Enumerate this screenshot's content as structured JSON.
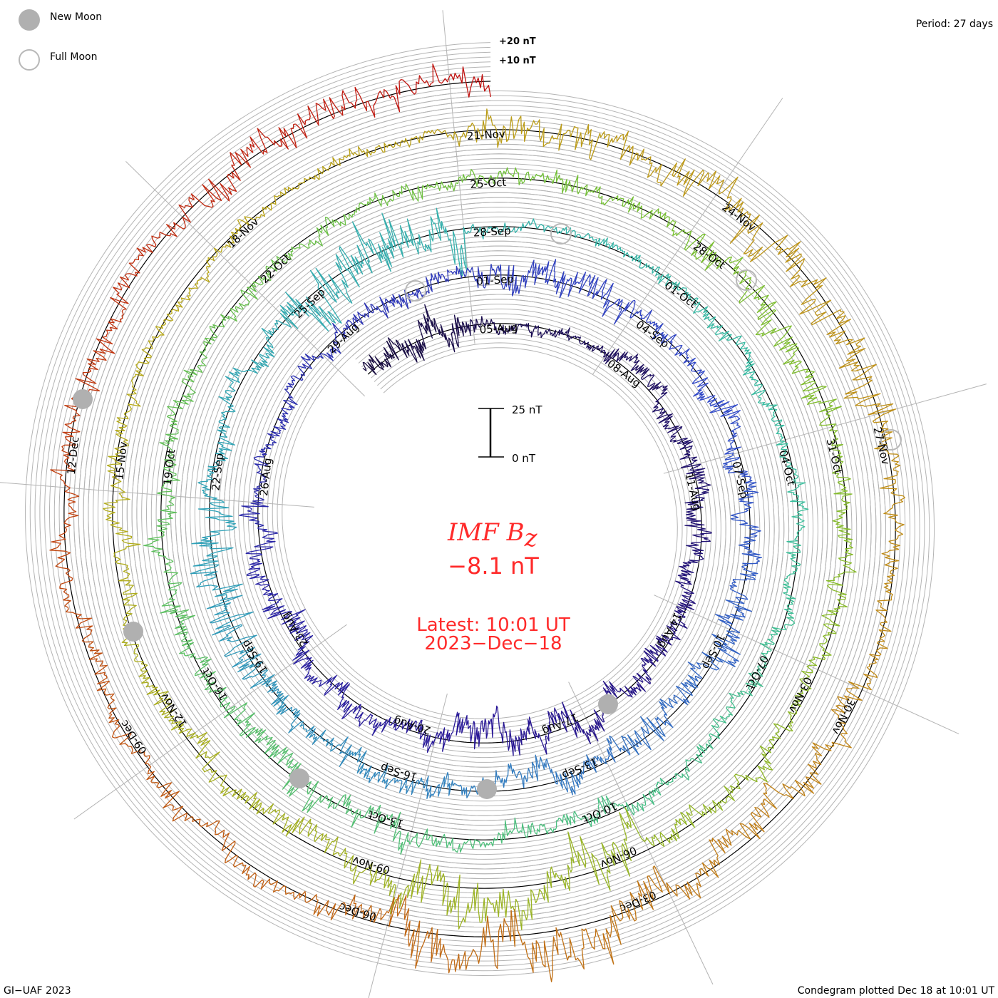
{
  "legend": {
    "new_moon": "New Moon",
    "full_moon": "Full Moon"
  },
  "period_label": "Period: 27 days",
  "scale_labels": {
    "plus20": "+20 nT",
    "plus10": "+10 nT"
  },
  "scale_bar": {
    "top": "25 nT",
    "bottom": "0 nT"
  },
  "center": {
    "title_main": "IMF B",
    "title_sub": "z",
    "value": "−8.1 nT",
    "latest": "Latest: 10:01 UT",
    "date": "2023−Dec−18"
  },
  "footer": {
    "left": "GI−UAF 2023",
    "right": "Condegram plotted Dec 18 at 10:01 UT"
  },
  "colors": {
    "text_red": "#ff2a2a",
    "grid": "#b4b4b4",
    "zero_line": "#000000",
    "moon": "#b0b0b0"
  },
  "chart_data": {
    "type": "line",
    "layout": "spiral condegram (clockwise)",
    "title": "IMF Bz",
    "units": "nT",
    "period_days": 27,
    "start_day": -2.6,
    "end_day": 135.4,
    "day_zero": "05-Aug",
    "label_step_days": 3,
    "latest_value": -8.1,
    "date_labels": [
      "05-Aug",
      "08-Aug",
      "11-Aug",
      "14-Aug",
      "17-Aug",
      "20-Aug",
      "23-Aug",
      "26-Aug",
      "29-Aug",
      "01-Sep",
      "04-Sep",
      "07-Sep",
      "10-Sep",
      "13-Sep",
      "16-Sep",
      "19-Sep",
      "22-Sep",
      "25-Sep",
      "28-Sep",
      "01-Oct",
      "04-Oct",
      "07-Oct",
      "10-Oct",
      "13-Oct",
      "16-Oct",
      "19-Oct",
      "22-Oct",
      "25-Oct",
      "28-Oct",
      "31-Oct",
      "03-Nov",
      "06-Nov",
      "09-Nov",
      "12-Nov",
      "15-Nov",
      "18-Nov",
      "21-Nov",
      "24-Nov",
      "27-Nov",
      "30-Nov",
      "03-Dec",
      "06-Dec",
      "09-Dec",
      "12-Dec"
    ],
    "activity_nT_per_3day_bin_from_day_-3": [
      8,
      3,
      5,
      6,
      6,
      8,
      6,
      7,
      4,
      5,
      8,
      5,
      7,
      8,
      7,
      6,
      10,
      5,
      14,
      3,
      4,
      4,
      5,
      5,
      8,
      6,
      5,
      4,
      4,
      8,
      5,
      5,
      12,
      6,
      5,
      4,
      3,
      8,
      10,
      5,
      7,
      14,
      6,
      5,
      6,
      8,
      8
    ],
    "grid_offsets_nT": [
      -12.5,
      -10,
      -7.5,
      -5,
      -2.5,
      2.5,
      5,
      7.5,
      10,
      12.5,
      15,
      17.5,
      20
    ],
    "new_moons": [
      "16-Aug",
      "15-Sep",
      "14-Oct",
      "13-Nov",
      "12-Dec"
    ],
    "full_moons": [
      "31-Aug",
      "29-Sep",
      "28-Oct",
      "27-Nov"
    ]
  }
}
